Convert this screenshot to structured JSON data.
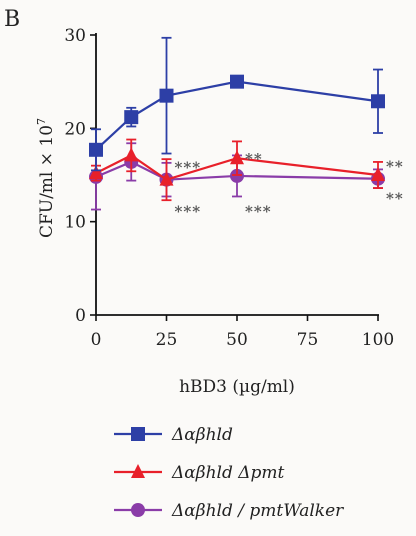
{
  "chart_data": {
    "type": "line",
    "panel_label": "B",
    "xlabel": "hBD3 (µg/ml)",
    "ylabel": "CFU/ml × 10",
    "ylabel_exp": "7",
    "xlim": [
      0,
      100
    ],
    "ylim": [
      0,
      30
    ],
    "xticks": [
      0,
      25,
      50,
      75,
      100
    ],
    "yticks": [
      0,
      10,
      20,
      30
    ],
    "legend_position": "bottom",
    "grid": false,
    "series": [
      {
        "name": "Δαβhld",
        "color": "#2d3fa6",
        "marker": "square",
        "x": [
          0,
          12.5,
          25,
          50,
          100
        ],
        "y": [
          17.7,
          21.2,
          23.5,
          25.0,
          22.9
        ],
        "err": [
          2.2,
          1.0,
          6.2,
          0.3,
          3.4
        ]
      },
      {
        "name": "Δαβhld Δpmt",
        "color": "#e8202a",
        "marker": "triangle",
        "x": [
          0,
          12.5,
          25,
          50,
          100
        ],
        "y": [
          15.2,
          17.1,
          14.5,
          16.8,
          15.0
        ],
        "err": [
          0.8,
          1.7,
          2.2,
          1.8,
          1.4
        ]
      },
      {
        "name": "Δαβhld / pmtWalker",
        "color": "#8a3ca8",
        "marker": "circle",
        "x": [
          0,
          12.5,
          25,
          50,
          100
        ],
        "y": [
          14.8,
          16.4,
          14.5,
          14.9,
          14.6
        ],
        "err": [
          3.5,
          2.0,
          1.8,
          2.2,
          1.0
        ]
      }
    ],
    "annotations": [
      {
        "text": "***",
        "x": 25,
        "y": 15.9
      },
      {
        "text": "**",
        "x": 50,
        "y": 16.8
      },
      {
        "text": "**",
        "x": 100,
        "y": 16.0
      },
      {
        "text": "***",
        "x": 25,
        "y": 11.2
      },
      {
        "text": "***",
        "x": 50,
        "y": 11.2
      },
      {
        "text": "**",
        "x": 100,
        "y": 12.6
      }
    ]
  }
}
